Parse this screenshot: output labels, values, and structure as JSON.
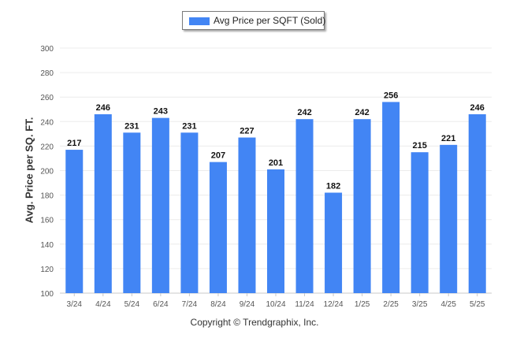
{
  "chart_data": {
    "type": "bar",
    "categories": [
      "3/24",
      "4/24",
      "5/24",
      "6/24",
      "7/24",
      "8/24",
      "9/24",
      "10/24",
      "11/24",
      "12/24",
      "1/25",
      "2/25",
      "3/25",
      "4/25",
      "5/25"
    ],
    "series": [
      {
        "name": "Avg Price per SQFT (Sold)",
        "values": [
          217,
          246,
          231,
          243,
          231,
          207,
          227,
          201,
          242,
          182,
          242,
          256,
          215,
          221,
          246
        ]
      }
    ],
    "ylabel": "Avg. Price per SQ. FT.",
    "xlabel": "",
    "ylim": [
      100,
      300
    ],
    "yticks": [
      100,
      120,
      140,
      160,
      180,
      200,
      220,
      240,
      260,
      280,
      300
    ],
    "grid": true,
    "legend": "top-center",
    "bar_color": "#4285f4",
    "footer": "Copyright © Trendgraphix, Inc."
  }
}
